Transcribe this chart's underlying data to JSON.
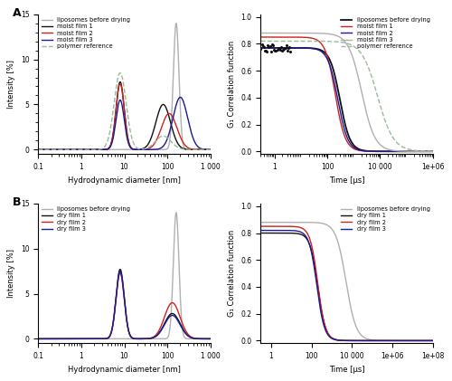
{
  "panel_A_label": "A",
  "panel_B_label": "B",
  "intensity_xlim": [
    0.1,
    1000
  ],
  "intensity_ylim": [
    -0.5,
    15
  ],
  "intensity_xlabel": "Hydrodynamic diameter [nm]",
  "intensity_ylabel": "Intensity [%]",
  "corr_A_xlim": [
    0.3,
    1000000
  ],
  "corr_B_xlim": [
    0.3,
    100000000
  ],
  "corr_ylim": [
    -0.02,
    1.02
  ],
  "corr_xlabel": "Time [µs]",
  "corr_ylabel": "G₁ Correlation function",
  "color_liposomes": "#b0b0b0",
  "color_film1": "#111111",
  "color_film2": "#cc2222",
  "color_film3": "#1a1a99",
  "color_polymer": "#99bb99",
  "legend_A_intensity": [
    "liposomes before drying",
    "moist film 1",
    "moist film 2",
    "moist film 3",
    "polymer reference"
  ],
  "legend_A_corr": [
    "liposomes before drying",
    "moist film 1",
    "moist film 2",
    "moist film 3",
    "polymer reference"
  ],
  "legend_B_intensity": [
    "liposomes before drying",
    "dry film 1",
    "dry film 2",
    "dry film 3"
  ],
  "legend_B_corr": [
    "liposomes before drying",
    "dry film 1",
    "dry film 2",
    "dry film 3"
  ]
}
